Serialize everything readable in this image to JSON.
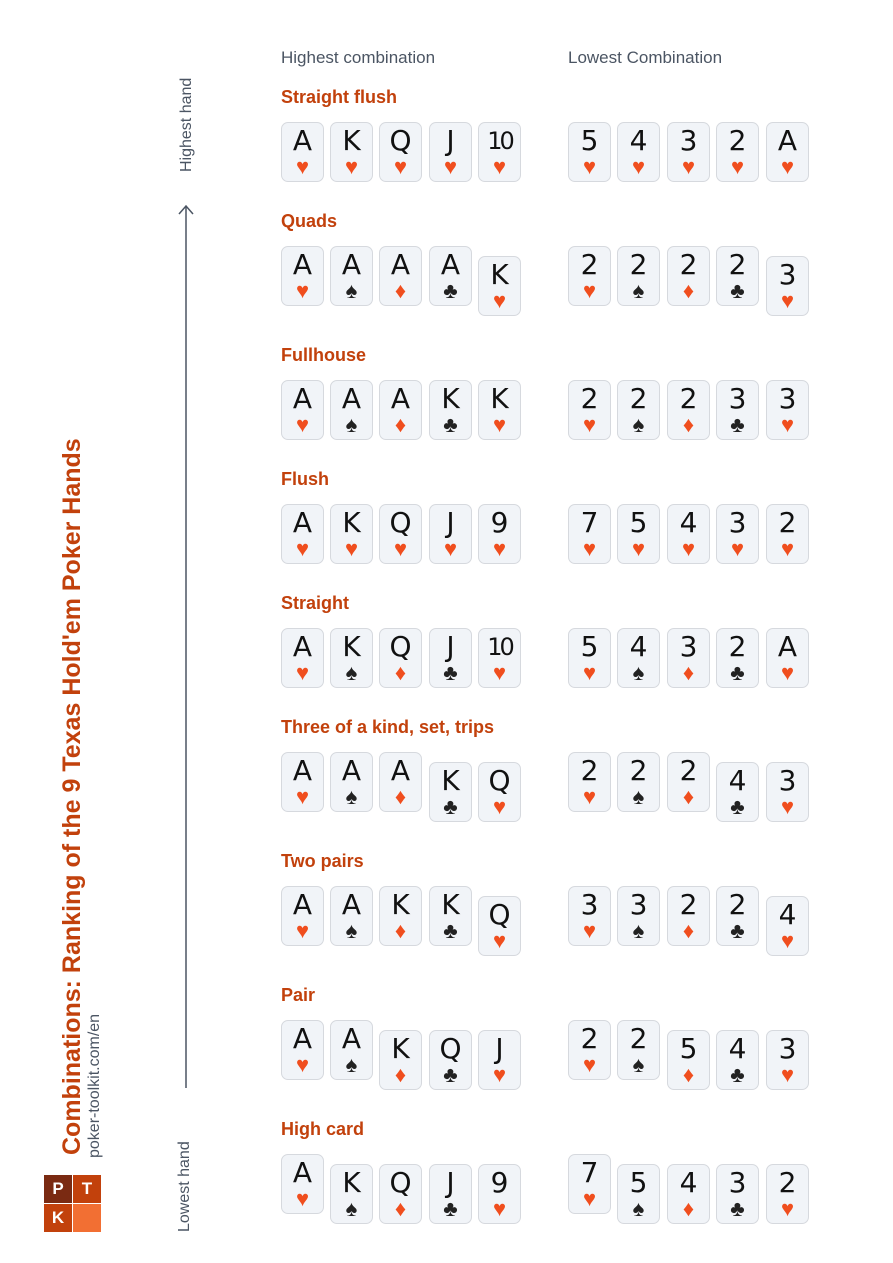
{
  "title": "Combinations: Ranking of the 9 Texas Hold'em Poker Hands",
  "site": "poker-toolkit.com/en",
  "logo": {
    "letters": [
      "P",
      "T",
      "K",
      ""
    ],
    "colors": [
      "#7a2a12",
      "#c2410c",
      "#c2410c",
      "#f26f33"
    ]
  },
  "axis": {
    "top_label": "Highest hand",
    "bottom_label": "Lowest hand"
  },
  "columns": {
    "highest": "Highest combination",
    "lowest": "Lowest Combination"
  },
  "colors": {
    "accent": "#c2410c",
    "red_suit": "#f04e1e",
    "black_suit": "#222222"
  },
  "hands": [
    {
      "name": "Straight flush",
      "high": [
        [
          "A",
          "h"
        ],
        [
          "K",
          "h"
        ],
        [
          "Q",
          "h"
        ],
        [
          "J",
          "h"
        ],
        [
          "10",
          "h"
        ]
      ],
      "low": [
        [
          "5",
          "h"
        ],
        [
          "4",
          "h"
        ],
        [
          "3",
          "h"
        ],
        [
          "2",
          "h"
        ],
        [
          "A",
          "h"
        ]
      ],
      "kickers": 0
    },
    {
      "name": "Quads",
      "high": [
        [
          "A",
          "h"
        ],
        [
          "A",
          "s"
        ],
        [
          "A",
          "d"
        ],
        [
          "A",
          "c"
        ],
        [
          "K",
          "h"
        ]
      ],
      "low": [
        [
          "2",
          "h"
        ],
        [
          "2",
          "s"
        ],
        [
          "2",
          "d"
        ],
        [
          "2",
          "c"
        ],
        [
          "3",
          "h"
        ]
      ],
      "kickers": 1
    },
    {
      "name": "Fullhouse",
      "high": [
        [
          "A",
          "h"
        ],
        [
          "A",
          "s"
        ],
        [
          "A",
          "d"
        ],
        [
          "K",
          "c"
        ],
        [
          "K",
          "h"
        ]
      ],
      "low": [
        [
          "2",
          "h"
        ],
        [
          "2",
          "s"
        ],
        [
          "2",
          "d"
        ],
        [
          "3",
          "c"
        ],
        [
          "3",
          "h"
        ]
      ],
      "kickers": 0
    },
    {
      "name": "Flush",
      "high": [
        [
          "A",
          "h"
        ],
        [
          "K",
          "h"
        ],
        [
          "Q",
          "h"
        ],
        [
          "J",
          "h"
        ],
        [
          "9",
          "h"
        ]
      ],
      "low": [
        [
          "7",
          "h"
        ],
        [
          "5",
          "h"
        ],
        [
          "4",
          "h"
        ],
        [
          "3",
          "h"
        ],
        [
          "2",
          "h"
        ]
      ],
      "kickers": 0
    },
    {
      "name": "Straight",
      "high": [
        [
          "A",
          "h"
        ],
        [
          "K",
          "s"
        ],
        [
          "Q",
          "d"
        ],
        [
          "J",
          "c"
        ],
        [
          "10",
          "h"
        ]
      ],
      "low": [
        [
          "5",
          "h"
        ],
        [
          "4",
          "s"
        ],
        [
          "3",
          "d"
        ],
        [
          "2",
          "c"
        ],
        [
          "A",
          "h"
        ]
      ],
      "kickers": 0
    },
    {
      "name": "Three of a kind, set, trips",
      "high": [
        [
          "A",
          "h"
        ],
        [
          "A",
          "s"
        ],
        [
          "A",
          "d"
        ],
        [
          "K",
          "c"
        ],
        [
          "Q",
          "h"
        ]
      ],
      "low": [
        [
          "2",
          "h"
        ],
        [
          "2",
          "s"
        ],
        [
          "2",
          "d"
        ],
        [
          "4",
          "c"
        ],
        [
          "3",
          "h"
        ]
      ],
      "kickers": 2
    },
    {
      "name": "Two pairs",
      "high": [
        [
          "A",
          "h"
        ],
        [
          "A",
          "s"
        ],
        [
          "K",
          "d"
        ],
        [
          "K",
          "c"
        ],
        [
          "Q",
          "h"
        ]
      ],
      "low": [
        [
          "3",
          "h"
        ],
        [
          "3",
          "s"
        ],
        [
          "2",
          "d"
        ],
        [
          "2",
          "c"
        ],
        [
          "4",
          "h"
        ]
      ],
      "kickers": 1
    },
    {
      "name": "Pair",
      "high": [
        [
          "A",
          "h"
        ],
        [
          "A",
          "s"
        ],
        [
          "K",
          "d"
        ],
        [
          "Q",
          "c"
        ],
        [
          "J",
          "h"
        ]
      ],
      "low": [
        [
          "2",
          "h"
        ],
        [
          "2",
          "s"
        ],
        [
          "5",
          "d"
        ],
        [
          "4",
          "c"
        ],
        [
          "3",
          "h"
        ]
      ],
      "kickers": 3
    },
    {
      "name": "High card",
      "high": [
        [
          "A",
          "h"
        ],
        [
          "K",
          "s"
        ],
        [
          "Q",
          "d"
        ],
        [
          "J",
          "c"
        ],
        [
          "9",
          "h"
        ]
      ],
      "low": [
        [
          "7",
          "h"
        ],
        [
          "5",
          "s"
        ],
        [
          "4",
          "d"
        ],
        [
          "3",
          "c"
        ],
        [
          "2",
          "h"
        ]
      ],
      "kickers": 4
    }
  ]
}
